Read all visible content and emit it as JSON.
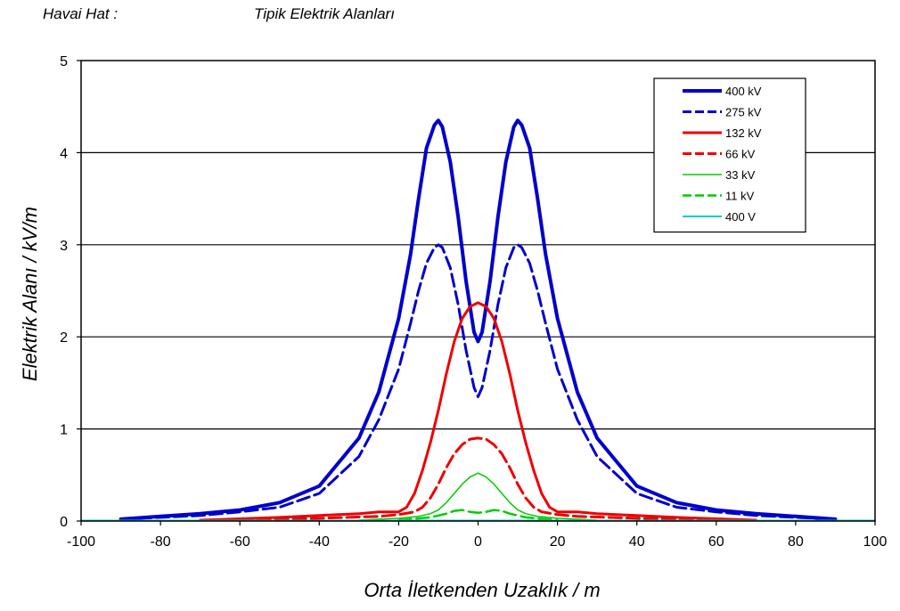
{
  "chart_data": {
    "type": "line",
    "title_left": "Havai Hat :",
    "title_right": "Tipik  Elektrik Alanları",
    "xlabel": "Orta İletkenden Uzaklık / m",
    "ylabel": "Elektrik Alanı / kV/m",
    "xlim": [
      -100,
      100
    ],
    "ylim": [
      0,
      5
    ],
    "xticks": [
      -100,
      -80,
      -60,
      -40,
      -20,
      0,
      20,
      40,
      60,
      80,
      100
    ],
    "yticks": [
      0,
      1,
      2,
      3,
      4,
      5
    ],
    "grid": "horizontal",
    "legend_position": "top-right",
    "series": [
      {
        "name": "400 kV",
        "color": "#0000cc",
        "dash": "solid",
        "width": 4,
        "x": [
          -90,
          -80,
          -70,
          -60,
          -50,
          -40,
          -30,
          -25,
          -20,
          -17,
          -15,
          -13,
          -11,
          -10,
          -9,
          -7,
          -5,
          -3,
          -1,
          0,
          1,
          3,
          5,
          7,
          9,
          10,
          11,
          13,
          15,
          17,
          20,
          25,
          30,
          40,
          50,
          60,
          70,
          80,
          90
        ],
        "y": [
          0.02,
          0.05,
          0.08,
          0.12,
          0.2,
          0.38,
          0.9,
          1.4,
          2.2,
          2.9,
          3.5,
          4.05,
          4.3,
          4.35,
          4.28,
          3.9,
          3.3,
          2.6,
          2.05,
          1.95,
          2.05,
          2.6,
          3.3,
          3.9,
          4.28,
          4.35,
          4.3,
          4.05,
          3.5,
          2.9,
          2.2,
          1.4,
          0.9,
          0.38,
          0.2,
          0.12,
          0.08,
          0.05,
          0.02
        ]
      },
      {
        "name": "275 kV",
        "color": "#0000cc",
        "dash": "dashed",
        "width": 3,
        "x": [
          -90,
          -80,
          -70,
          -60,
          -50,
          -40,
          -30,
          -25,
          -20,
          -17,
          -15,
          -13,
          -11,
          -10,
          -9,
          -7,
          -5,
          -3,
          -1,
          0,
          1,
          3,
          5,
          7,
          9,
          10,
          11,
          13,
          15,
          17,
          20,
          25,
          30,
          40,
          50,
          60,
          70,
          80,
          90
        ],
        "y": [
          0.02,
          0.04,
          0.06,
          0.1,
          0.15,
          0.3,
          0.7,
          1.1,
          1.65,
          2.15,
          2.5,
          2.8,
          2.97,
          3.0,
          2.97,
          2.75,
          2.35,
          1.85,
          1.45,
          1.35,
          1.45,
          1.85,
          2.35,
          2.75,
          2.97,
          3.0,
          2.97,
          2.8,
          2.5,
          2.15,
          1.65,
          1.1,
          0.7,
          0.3,
          0.15,
          0.1,
          0.06,
          0.04,
          0.02
        ]
      },
      {
        "name": "132 kV",
        "color": "#ee0000",
        "dash": "solid",
        "width": 3,
        "x": [
          -70,
          -50,
          -30,
          -25,
          -20,
          -18,
          -16,
          -14,
          -12,
          -10,
          -8,
          -6,
          -4,
          -2,
          0,
          2,
          4,
          6,
          8,
          10,
          12,
          14,
          16,
          18,
          20,
          25,
          30,
          50,
          70
        ],
        "y": [
          0.01,
          0.04,
          0.08,
          0.1,
          0.1,
          0.15,
          0.3,
          0.55,
          0.85,
          1.2,
          1.6,
          1.95,
          2.2,
          2.33,
          2.37,
          2.33,
          2.2,
          1.95,
          1.6,
          1.2,
          0.85,
          0.55,
          0.3,
          0.15,
          0.1,
          0.1,
          0.08,
          0.04,
          0.01
        ]
      },
      {
        "name": "66 kV",
        "color": "#ee0000",
        "dash": "dashed",
        "width": 3,
        "x": [
          -60,
          -40,
          -25,
          -20,
          -16,
          -14,
          -12,
          -10,
          -8,
          -6,
          -4,
          -2,
          0,
          2,
          4,
          6,
          8,
          10,
          12,
          14,
          16,
          20,
          25,
          40,
          60
        ],
        "y": [
          0.01,
          0.03,
          0.05,
          0.07,
          0.1,
          0.15,
          0.25,
          0.4,
          0.58,
          0.73,
          0.83,
          0.89,
          0.9,
          0.89,
          0.83,
          0.73,
          0.58,
          0.4,
          0.25,
          0.15,
          0.1,
          0.07,
          0.05,
          0.03,
          0.01
        ]
      },
      {
        "name": "33 kV",
        "color": "#00cc00",
        "dash": "solid",
        "width": 1.5,
        "x": [
          -30,
          -20,
          -15,
          -12,
          -10,
          -8,
          -6,
          -4,
          -2,
          0,
          2,
          4,
          6,
          8,
          10,
          12,
          15,
          20,
          30
        ],
        "y": [
          0.01,
          0.03,
          0.05,
          0.08,
          0.12,
          0.2,
          0.3,
          0.4,
          0.48,
          0.52,
          0.48,
          0.4,
          0.3,
          0.2,
          0.12,
          0.08,
          0.05,
          0.03,
          0.01
        ]
      },
      {
        "name": "11 kV",
        "color": "#00cc00",
        "dash": "dashed",
        "width": 2.5,
        "x": [
          -20,
          -12,
          -8,
          -6,
          -4,
          -2,
          0,
          2,
          4,
          6,
          8,
          12,
          20
        ],
        "y": [
          0.01,
          0.04,
          0.08,
          0.11,
          0.12,
          0.1,
          0.09,
          0.1,
          0.12,
          0.11,
          0.08,
          0.04,
          0.01
        ]
      },
      {
        "name": "400 V",
        "color": "#00cccc",
        "dash": "solid",
        "width": 2,
        "x": [
          -100,
          100
        ],
        "y": [
          0.005,
          0.005
        ]
      }
    ]
  }
}
